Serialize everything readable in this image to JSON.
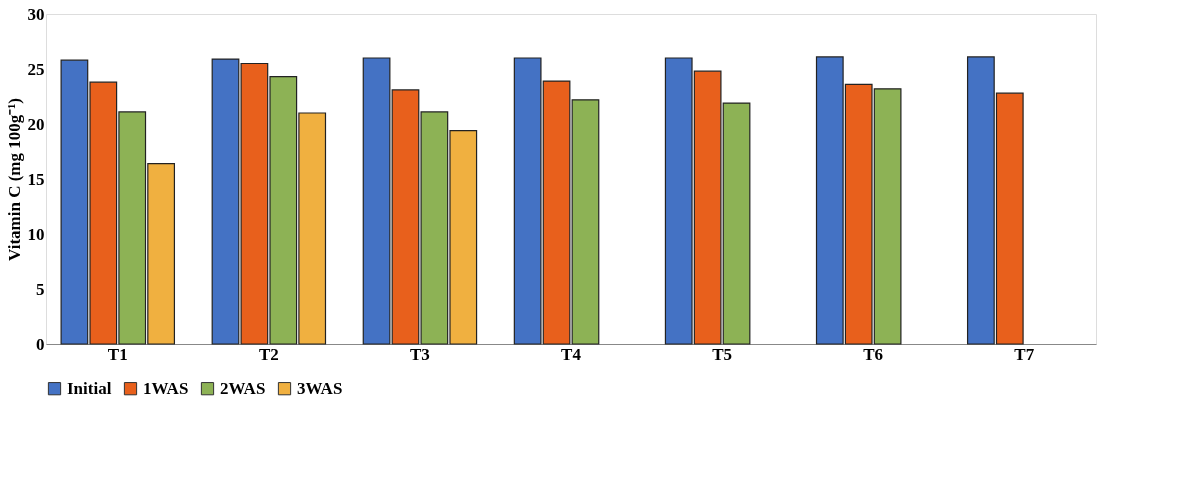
{
  "chart_data": {
    "type": "bar",
    "ylabel": "Vitamin C (mg 100g⁻¹)",
    "categories": [
      "T1",
      "T2",
      "T3",
      "T4",
      "T5",
      "T6",
      "T7"
    ],
    "series": [
      {
        "name": "Initial",
        "color": "#4472c4",
        "values": [
          25.8,
          25.9,
          26.0,
          26.0,
          26.0,
          26.1,
          26.1
        ]
      },
      {
        "name": "1WAS",
        "color": "#e8601c",
        "values": [
          23.8,
          25.5,
          23.1,
          23.9,
          24.8,
          23.6,
          22.8
        ]
      },
      {
        "name": "2WAS",
        "color": "#8db255",
        "values": [
          21.1,
          24.3,
          21.1,
          22.2,
          21.9,
          23.2,
          null
        ]
      },
      {
        "name": "3WAS",
        "color": "#f0b040",
        "values": [
          16.4,
          21.0,
          19.4,
          null,
          null,
          null,
          null
        ]
      }
    ],
    "ylim": [
      0,
      30
    ],
    "yticks": [
      0,
      5,
      10,
      15,
      20,
      25,
      30
    ],
    "grid": false,
    "legend": "bottom"
  }
}
